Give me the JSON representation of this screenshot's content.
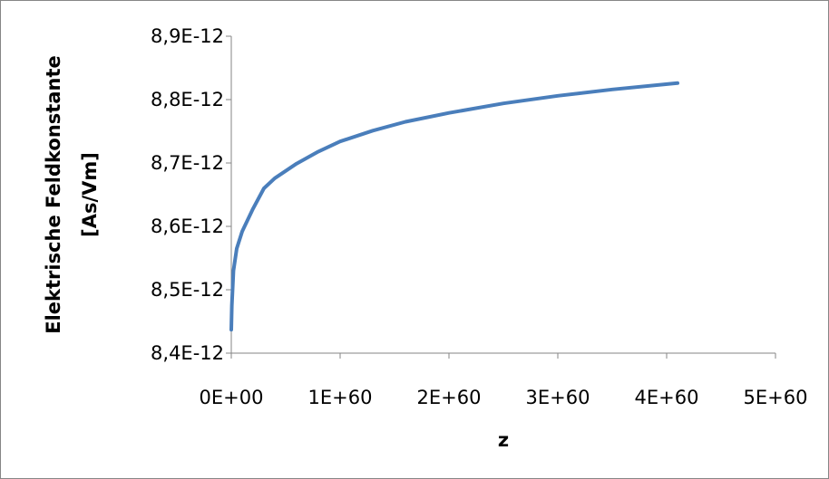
{
  "chart_data": {
    "type": "line",
    "title": "",
    "xlabel": "z",
    "ylabel_lines": [
      "Elektrische Feldkonstante",
      "[As/Vm]"
    ],
    "xlim": [
      0,
      5e+60
    ],
    "ylim": [
      8.4e-12,
      8.9e-12
    ],
    "x_ticks": [
      {
        "value": 0,
        "label": "0E+00"
      },
      {
        "value": 1e+60,
        "label": "1E+60"
      },
      {
        "value": 2e+60,
        "label": "2E+60"
      },
      {
        "value": 3e+60,
        "label": "3E+60"
      },
      {
        "value": 4e+60,
        "label": "4E+60"
      },
      {
        "value": 5e+60,
        "label": "5E+60"
      }
    ],
    "y_ticks": [
      {
        "value": 8.4e-12,
        "label": "8,4E-12"
      },
      {
        "value": 8.5e-12,
        "label": "8,5E-12"
      },
      {
        "value": 8.6e-12,
        "label": "8,6E-12"
      },
      {
        "value": 8.7e-12,
        "label": "8,7E-12"
      },
      {
        "value": 8.8e-12,
        "label": "8,8E-12"
      },
      {
        "value": 8.9e-12,
        "label": "8,9E-12"
      }
    ],
    "grid": false,
    "legend": "none",
    "series": [
      {
        "color": "#4a7ebb",
        "points": [
          [
            0,
            8.437e-12
          ],
          [
            5e+57,
            8.475e-12
          ],
          [
            2e+58,
            8.53e-12
          ],
          [
            5e+58,
            8.565e-12
          ],
          [
            1e+59,
            8.592e-12
          ],
          [
            2e+59,
            8.628e-12
          ],
          [
            3e+59,
            8.66e-12
          ],
          [
            4e+59,
            8.676e-12
          ],
          [
            6e+59,
            8.699e-12
          ],
          [
            8e+59,
            8.718e-12
          ],
          [
            1e+60,
            8.734e-12
          ],
          [
            1.3e+60,
            8.751e-12
          ],
          [
            1.6e+60,
            8.765e-12
          ],
          [
            2e+60,
            8.779e-12
          ],
          [
            2.5e+60,
            8.794e-12
          ],
          [
            3e+60,
            8.806e-12
          ],
          [
            3.5e+60,
            8.816e-12
          ],
          [
            4.1e+60,
            8.826e-12
          ]
        ]
      }
    ]
  }
}
